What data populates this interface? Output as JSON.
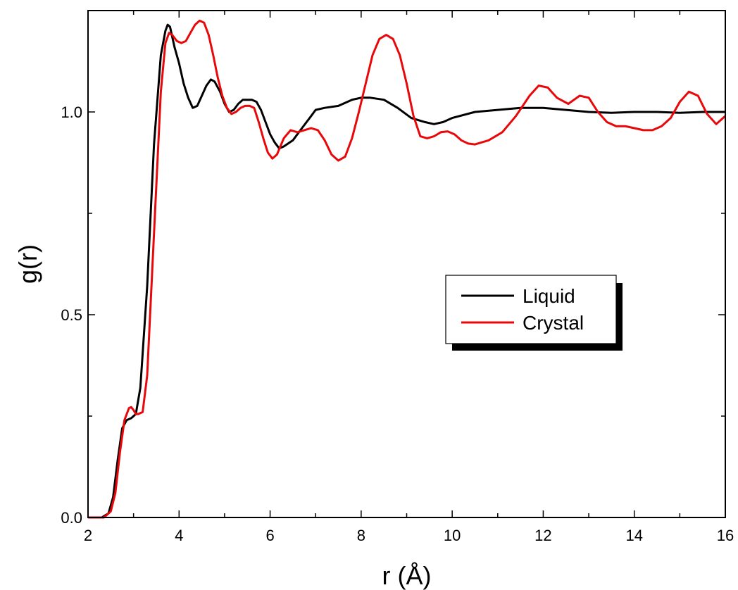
{
  "chart_data": {
    "type": "line",
    "title": "",
    "xlabel": "r (Å)",
    "ylabel": "g(r)",
    "xlim": [
      2,
      16
    ],
    "ylim": [
      0,
      1.25
    ],
    "xticks": [
      2,
      4,
      6,
      8,
      10,
      12,
      14,
      16
    ],
    "xtick_labels": [
      "2",
      "4",
      "6",
      "8",
      "10",
      "12",
      "14",
      "16"
    ],
    "yticks": [
      0,
      0.5,
      1.0
    ],
    "ytick_labels": [
      "0.0",
      "0.5",
      "1.0"
    ],
    "grid": false,
    "legend_position": "right-middle",
    "series": [
      {
        "name": "Liquid",
        "color": "#000000",
        "x": [
          2.0,
          2.3,
          2.45,
          2.55,
          2.65,
          2.75,
          2.85,
          2.95,
          3.05,
          3.15,
          3.3,
          3.45,
          3.6,
          3.7,
          3.75,
          3.8,
          3.9,
          4.0,
          4.1,
          4.2,
          4.3,
          4.4,
          4.5,
          4.6,
          4.7,
          4.78,
          4.9,
          5.0,
          5.1,
          5.2,
          5.3,
          5.4,
          5.5,
          5.6,
          5.7,
          5.8,
          5.9,
          6.0,
          6.1,
          6.2,
          6.3,
          6.5,
          6.7,
          6.9,
          7.0,
          7.2,
          7.5,
          7.8,
          8.0,
          8.2,
          8.5,
          8.8,
          9.1,
          9.4,
          9.6,
          9.8,
          10.0,
          10.5,
          11.0,
          11.5,
          12.0,
          12.5,
          13.0,
          13.5,
          14.0,
          14.5,
          15.0,
          15.5,
          16.0
        ],
        "y": [
          0.0,
          0.0,
          0.01,
          0.05,
          0.14,
          0.22,
          0.24,
          0.245,
          0.255,
          0.32,
          0.57,
          0.92,
          1.14,
          1.2,
          1.215,
          1.21,
          1.16,
          1.12,
          1.07,
          1.035,
          1.01,
          1.015,
          1.04,
          1.065,
          1.08,
          1.075,
          1.05,
          1.02,
          1.0,
          1.005,
          1.02,
          1.03,
          1.03,
          1.03,
          1.025,
          1.005,
          0.975,
          0.945,
          0.925,
          0.91,
          0.915,
          0.93,
          0.96,
          0.99,
          1.005,
          1.01,
          1.015,
          1.03,
          1.035,
          1.035,
          1.03,
          1.01,
          0.985,
          0.975,
          0.97,
          0.975,
          0.985,
          1.0,
          1.005,
          1.01,
          1.01,
          1.005,
          1.0,
          0.998,
          1.0,
          1.0,
          0.998,
          1.0,
          1.0
        ]
      },
      {
        "name": "Crystal",
        "color": "#e8080a",
        "x": [
          2.0,
          2.35,
          2.5,
          2.6,
          2.7,
          2.8,
          2.9,
          2.95,
          3.0,
          3.05,
          3.1,
          3.2,
          3.3,
          3.45,
          3.6,
          3.7,
          3.78,
          3.85,
          3.95,
          4.05,
          4.15,
          4.25,
          4.35,
          4.45,
          4.55,
          4.65,
          4.75,
          4.85,
          4.95,
          5.05,
          5.15,
          5.25,
          5.35,
          5.45,
          5.55,
          5.65,
          5.75,
          5.85,
          5.95,
          6.05,
          6.15,
          6.3,
          6.45,
          6.6,
          6.75,
          6.9,
          7.05,
          7.2,
          7.35,
          7.5,
          7.65,
          7.8,
          7.95,
          8.1,
          8.25,
          8.4,
          8.55,
          8.7,
          8.85,
          9.0,
          9.15,
          9.3,
          9.45,
          9.6,
          9.75,
          9.9,
          10.05,
          10.2,
          10.35,
          10.5,
          10.8,
          11.1,
          11.4,
          11.7,
          11.9,
          12.1,
          12.3,
          12.55,
          12.8,
          13.0,
          13.2,
          13.4,
          13.6,
          13.8,
          14.0,
          14.2,
          14.4,
          14.6,
          14.8,
          15.0,
          15.2,
          15.4,
          15.6,
          15.8,
          16.0
        ],
        "y": [
          0.0,
          0.0,
          0.015,
          0.06,
          0.16,
          0.24,
          0.27,
          0.272,
          0.265,
          0.255,
          0.255,
          0.26,
          0.35,
          0.7,
          1.05,
          1.17,
          1.195,
          1.19,
          1.175,
          1.17,
          1.175,
          1.195,
          1.215,
          1.225,
          1.22,
          1.19,
          1.14,
          1.085,
          1.04,
          1.01,
          0.995,
          1.0,
          1.01,
          1.015,
          1.015,
          1.01,
          0.975,
          0.935,
          0.9,
          0.885,
          0.895,
          0.935,
          0.955,
          0.95,
          0.955,
          0.96,
          0.955,
          0.93,
          0.895,
          0.88,
          0.89,
          0.935,
          1.0,
          1.07,
          1.14,
          1.18,
          1.19,
          1.18,
          1.14,
          1.07,
          0.99,
          0.94,
          0.935,
          0.94,
          0.95,
          0.952,
          0.945,
          0.93,
          0.922,
          0.92,
          0.93,
          0.95,
          0.99,
          1.04,
          1.065,
          1.06,
          1.035,
          1.02,
          1.04,
          1.035,
          1.0,
          0.975,
          0.965,
          0.965,
          0.96,
          0.955,
          0.955,
          0.965,
          0.985,
          1.025,
          1.05,
          1.04,
          0.995,
          0.97,
          0.99
        ]
      }
    ]
  }
}
